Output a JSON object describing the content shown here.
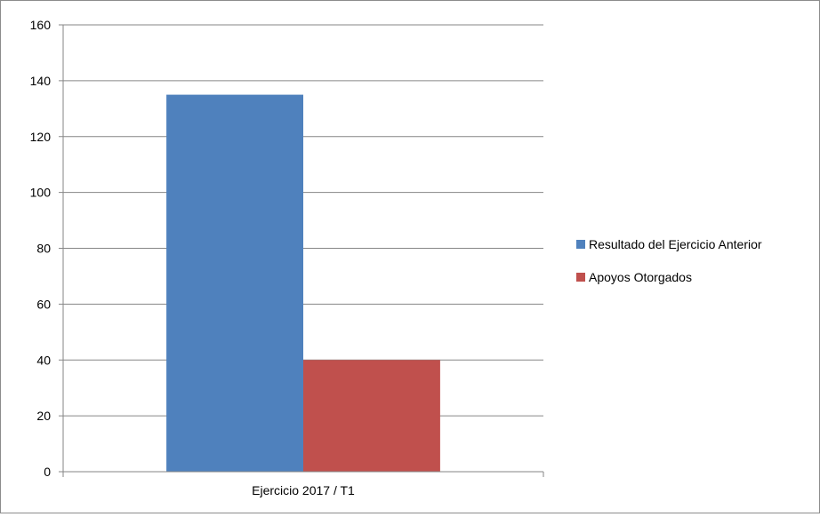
{
  "chart_data": {
    "type": "bar",
    "categories": [
      "Ejercicio 2017 / T1"
    ],
    "series": [
      {
        "name": "Resultado del Ejercicio Anterior",
        "values": [
          135
        ],
        "color": "#4f81bd"
      },
      {
        "name": "Apoyos Otorgados",
        "values": [
          40
        ],
        "color": "#c0504d"
      }
    ],
    "y_ticks": [
      "0",
      "20",
      "40",
      "60",
      "80",
      "100",
      "120",
      "140",
      "160"
    ],
    "ylim": [
      0,
      160
    ],
    "grid": true,
    "legend_position": "right"
  }
}
